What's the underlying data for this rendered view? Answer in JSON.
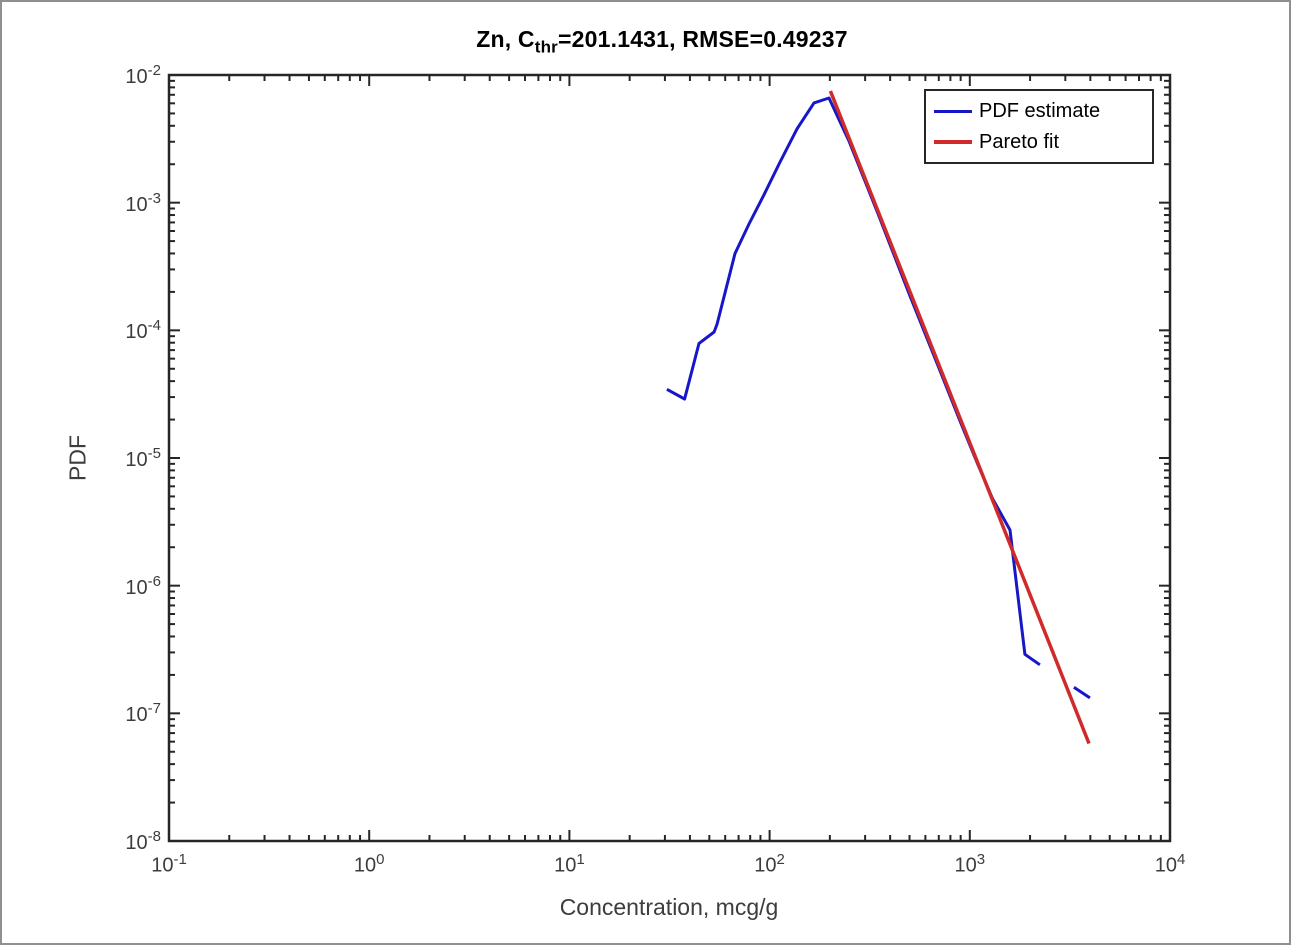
{
  "window": {
    "background": "#ffffff",
    "border_color": "#8f8f8f"
  },
  "title": {
    "prefix": "Zn, C",
    "subscript": "thr",
    "suffix": "=201.1431, RMSE=0.49237"
  },
  "axes": {
    "axis_color": "#262626",
    "tick_label_color": "#3d3d3d",
    "tick_base": "10",
    "x_tick_exponents": [
      -1,
      0,
      1,
      2,
      3,
      4
    ],
    "y_tick_exponents": [
      -2,
      -3,
      -4,
      -5,
      -6,
      -7,
      -8
    ]
  },
  "legend": {
    "border_color": "#262626",
    "items": [
      {
        "label": "PDF estimate",
        "color": "#1717c8"
      },
      {
        "label": "Pareto fit",
        "color": "#d02a2a"
      }
    ]
  },
  "chart_data": {
    "type": "line",
    "title": "Zn, C_thr=201.1431, RMSE=0.49237",
    "xlabel": "Concentration, mcg/g",
    "ylabel": "PDF",
    "xscale": "log",
    "yscale": "log",
    "xlim": [
      0.1,
      10000
    ],
    "ylim": [
      1e-08,
      0.01
    ],
    "grid": false,
    "legend_position": "northeast",
    "series": [
      {
        "name": "PDF estimate",
        "color": "#1717c8",
        "width": 3,
        "points": [
          [
            30.7,
            3.45e-05
          ],
          [
            37.6,
            2.9e-05
          ],
          [
            44.4,
            7.9e-05
          ],
          [
            52.8,
            9.7e-05
          ],
          [
            54.7,
            0.000112
          ],
          [
            67.2,
            0.0004
          ],
          [
            78.9,
            0.00068
          ],
          [
            93.7,
            0.00115
          ],
          [
            112.7,
            0.00208
          ],
          [
            137.1,
            0.00378
          ],
          [
            166.7,
            0.00605
          ],
          [
            198.0,
            0.0066
          ],
          [
            250.0,
            0.003
          ],
          [
            350.0,
            0.0008
          ],
          [
            500.0,
            0.00019
          ],
          [
            700.0,
            5.1e-05
          ],
          [
            900.0,
            1.9e-05
          ],
          [
            1100.0,
            8.8e-06
          ],
          [
            1300.0,
            4.8e-06
          ],
          [
            1587.0,
            2.73e-06
          ],
          [
            1884.0,
            2.9e-07
          ],
          [
            2239.0,
            2.4e-07
          ],
          null,
          [
            3311.0,
            1.6e-07
          ],
          [
            3981.0,
            1.32e-07
          ]
        ]
      },
      {
        "name": "Pareto fit",
        "color": "#d02a2a",
        "width": 3.5,
        "points": [
          [
            201.14,
            0.0075
          ],
          [
            3940.0,
            5.8e-08
          ]
        ]
      }
    ]
  }
}
